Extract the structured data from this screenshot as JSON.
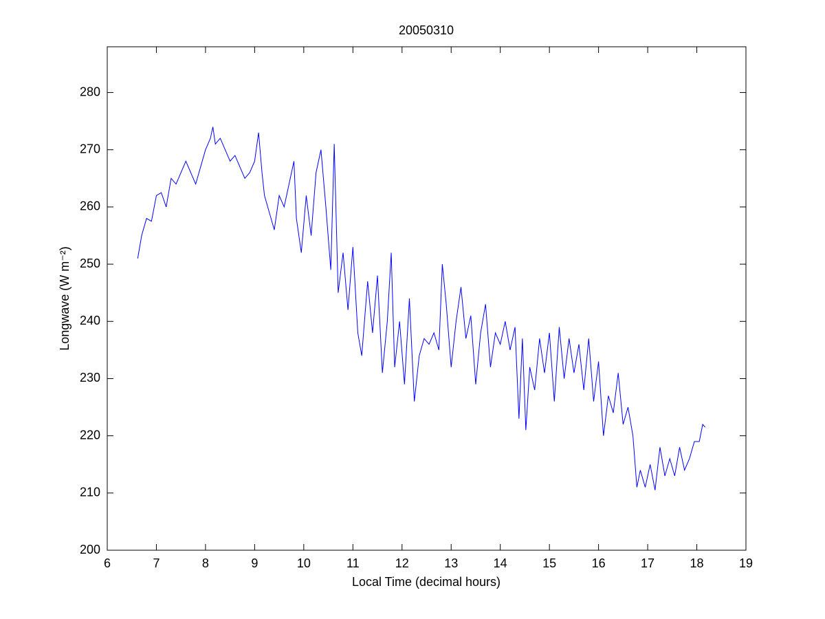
{
  "chart_data": {
    "type": "line",
    "title": "20050310",
    "xlabel": "Local Time (decimal hours)",
    "ylabel": "Longwave (W m⁻²)",
    "x": [
      6.62,
      6.7,
      6.8,
      6.9,
      7.0,
      7.1,
      7.2,
      7.3,
      7.4,
      7.5,
      7.6,
      7.7,
      7.8,
      7.9,
      8.0,
      8.1,
      8.15,
      8.2,
      8.3,
      8.4,
      8.5,
      8.6,
      8.7,
      8.8,
      8.9,
      9.0,
      9.08,
      9.15,
      9.2,
      9.3,
      9.4,
      9.5,
      9.6,
      9.7,
      9.8,
      9.85,
      9.95,
      10.05,
      10.15,
      10.25,
      10.35,
      10.45,
      10.55,
      10.62,
      10.7,
      10.8,
      10.9,
      11.0,
      11.1,
      11.18,
      11.3,
      11.4,
      11.5,
      11.6,
      11.7,
      11.78,
      11.85,
      11.95,
      12.05,
      12.15,
      12.25,
      12.35,
      12.45,
      12.55,
      12.65,
      12.75,
      12.82,
      12.9,
      13.0,
      13.1,
      13.2,
      13.3,
      13.4,
      13.5,
      13.6,
      13.7,
      13.8,
      13.9,
      14.0,
      14.1,
      14.2,
      14.3,
      14.38,
      14.45,
      14.52,
      14.6,
      14.7,
      14.8,
      14.9,
      15.0,
      15.1,
      15.2,
      15.3,
      15.4,
      15.5,
      15.6,
      15.7,
      15.8,
      15.9,
      16.0,
      16.1,
      16.2,
      16.3,
      16.4,
      16.5,
      16.6,
      16.7,
      16.78,
      16.85,
      16.95,
      17.05,
      17.15,
      17.25,
      17.35,
      17.45,
      17.55,
      17.65,
      17.75,
      17.85,
      17.95,
      18.05,
      18.12,
      18.17
    ],
    "series": [
      {
        "name": "Longwave",
        "color": "#0000ff",
        "values": [
          251,
          255,
          258,
          257.5,
          262,
          262.5,
          260,
          265,
          264,
          266,
          268,
          266,
          264,
          267,
          270,
          272,
          274,
          271,
          272,
          270,
          268,
          269,
          267,
          265,
          266,
          268,
          273,
          266,
          262,
          259,
          256,
          262,
          260,
          264,
          268,
          258,
          252,
          262,
          255,
          266,
          270,
          260,
          249,
          271,
          245,
          252,
          242,
          253,
          238,
          234,
          247,
          238,
          248,
          231,
          240,
          252,
          232,
          240,
          229,
          244,
          226,
          234,
          237,
          236,
          238,
          235,
          250,
          243,
          232,
          240,
          246,
          237,
          241,
          229,
          238,
          243,
          232,
          238,
          236,
          240,
          235,
          239,
          223,
          237,
          221,
          232,
          228,
          237,
          231,
          238,
          226,
          239,
          230,
          237,
          231,
          236,
          228,
          237,
          226,
          233,
          220,
          227,
          224,
          231,
          222,
          225,
          220,
          211,
          214,
          211,
          215,
          210.5,
          218,
          213,
          216,
          213,
          218,
          214,
          216,
          219,
          219,
          222,
          221.5
        ]
      }
    ],
    "xlim": [
      6,
      19
    ],
    "ylim": [
      200,
      288
    ],
    "xticks": [
      6,
      7,
      8,
      9,
      10,
      11,
      12,
      13,
      14,
      15,
      16,
      17,
      18,
      19
    ],
    "yticks": [
      200,
      210,
      220,
      230,
      240,
      250,
      260,
      270,
      280
    ]
  }
}
